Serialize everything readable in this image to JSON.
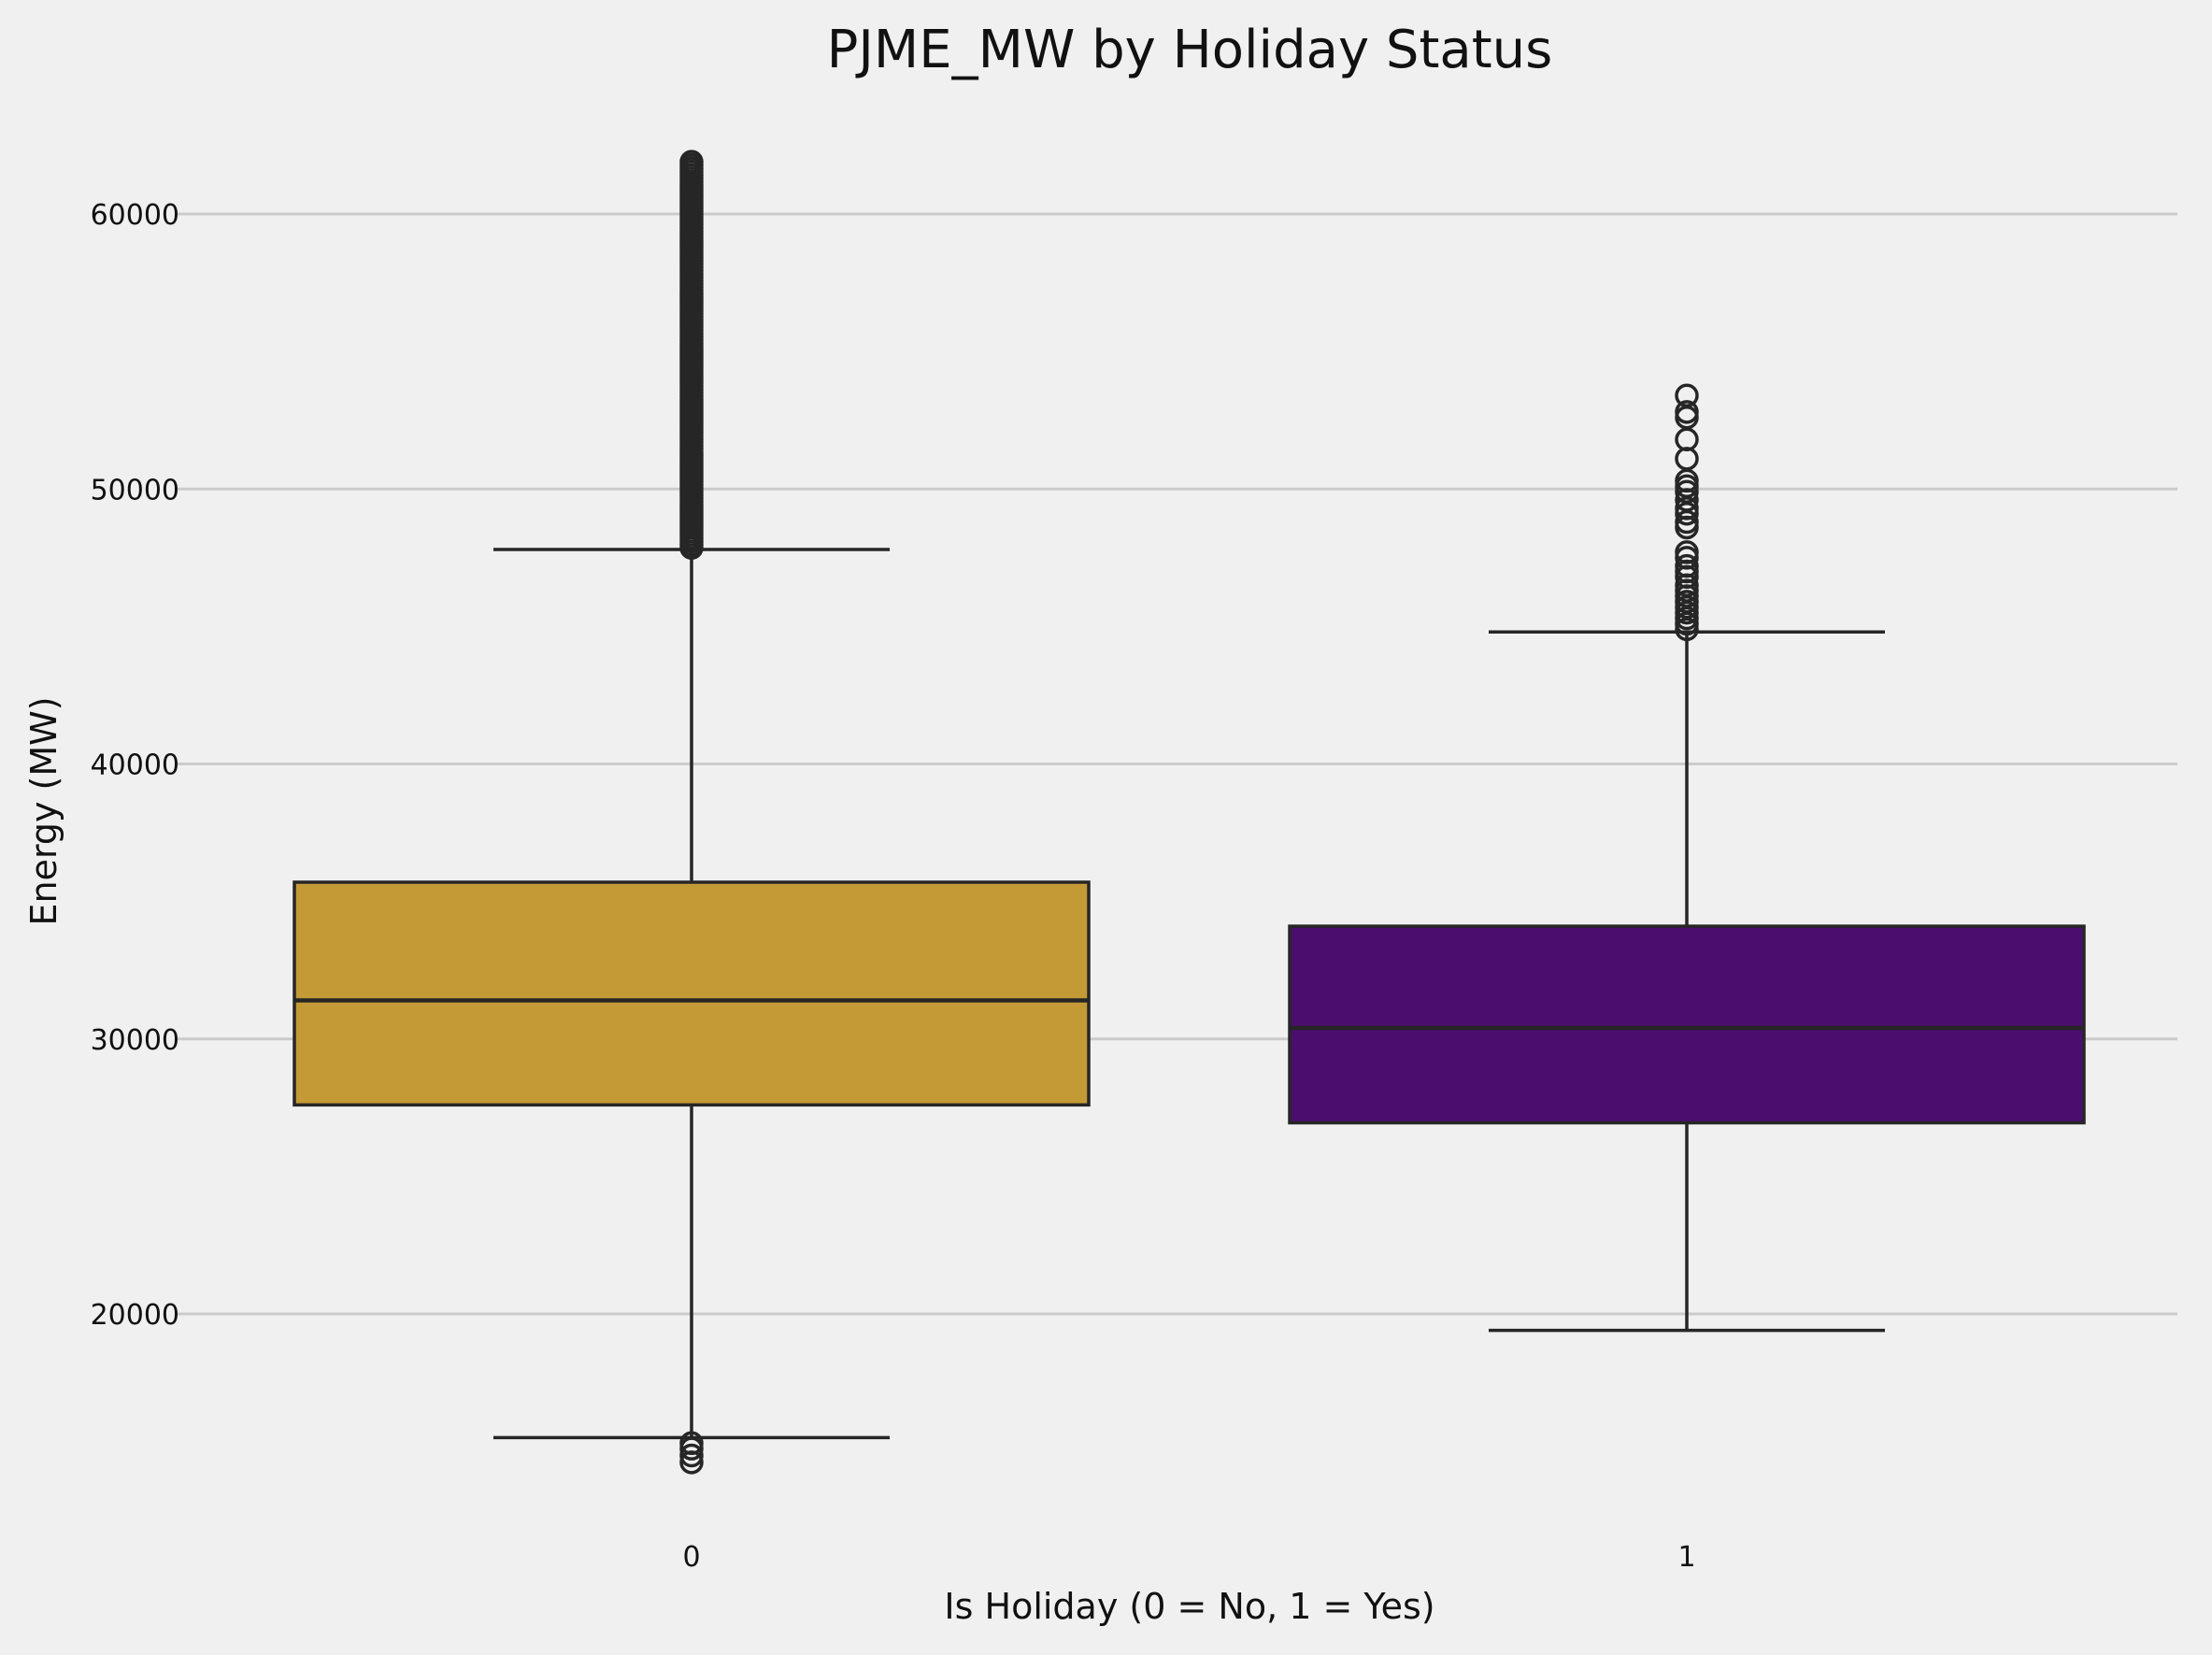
{
  "chart_data": {
    "type": "box",
    "title": "PJME_MW by Holiday Status",
    "xlabel": "Is Holiday (0 = No, 1 = Yes)",
    "ylabel": "Energy (MW)",
    "categories": [
      "0",
      "1"
    ],
    "yticks": [
      20000,
      30000,
      40000,
      50000,
      60000
    ],
    "ylim": [
      12500,
      63500
    ],
    "grid": "horizontal",
    "boxes": [
      {
        "category": "0",
        "color": "#c39a36",
        "whisker_low": 15500,
        "q1": 27600,
        "median": 31400,
        "q3": 35700,
        "whisker_high": 47800,
        "fliers_low": [
          14600,
          14850,
          15100,
          15300
        ],
        "fliers_high_range": [
          47800,
          62000
        ]
      },
      {
        "category": "1",
        "color": "#4a0f6e",
        "whisker_low": 19400,
        "q1": 26950,
        "median": 30400,
        "q3": 34100,
        "whisker_high": 44800,
        "fliers_low": [],
        "fliers_high": [
          44900,
          45100,
          45300,
          45500,
          45700,
          45900,
          46100,
          46300,
          46500,
          46800,
          47000,
          47200,
          47500,
          47700,
          48600,
          48800,
          49100,
          49300,
          49600,
          49900,
          50100,
          50300,
          51100,
          51800,
          52600,
          52800,
          53400
        ]
      }
    ]
  }
}
